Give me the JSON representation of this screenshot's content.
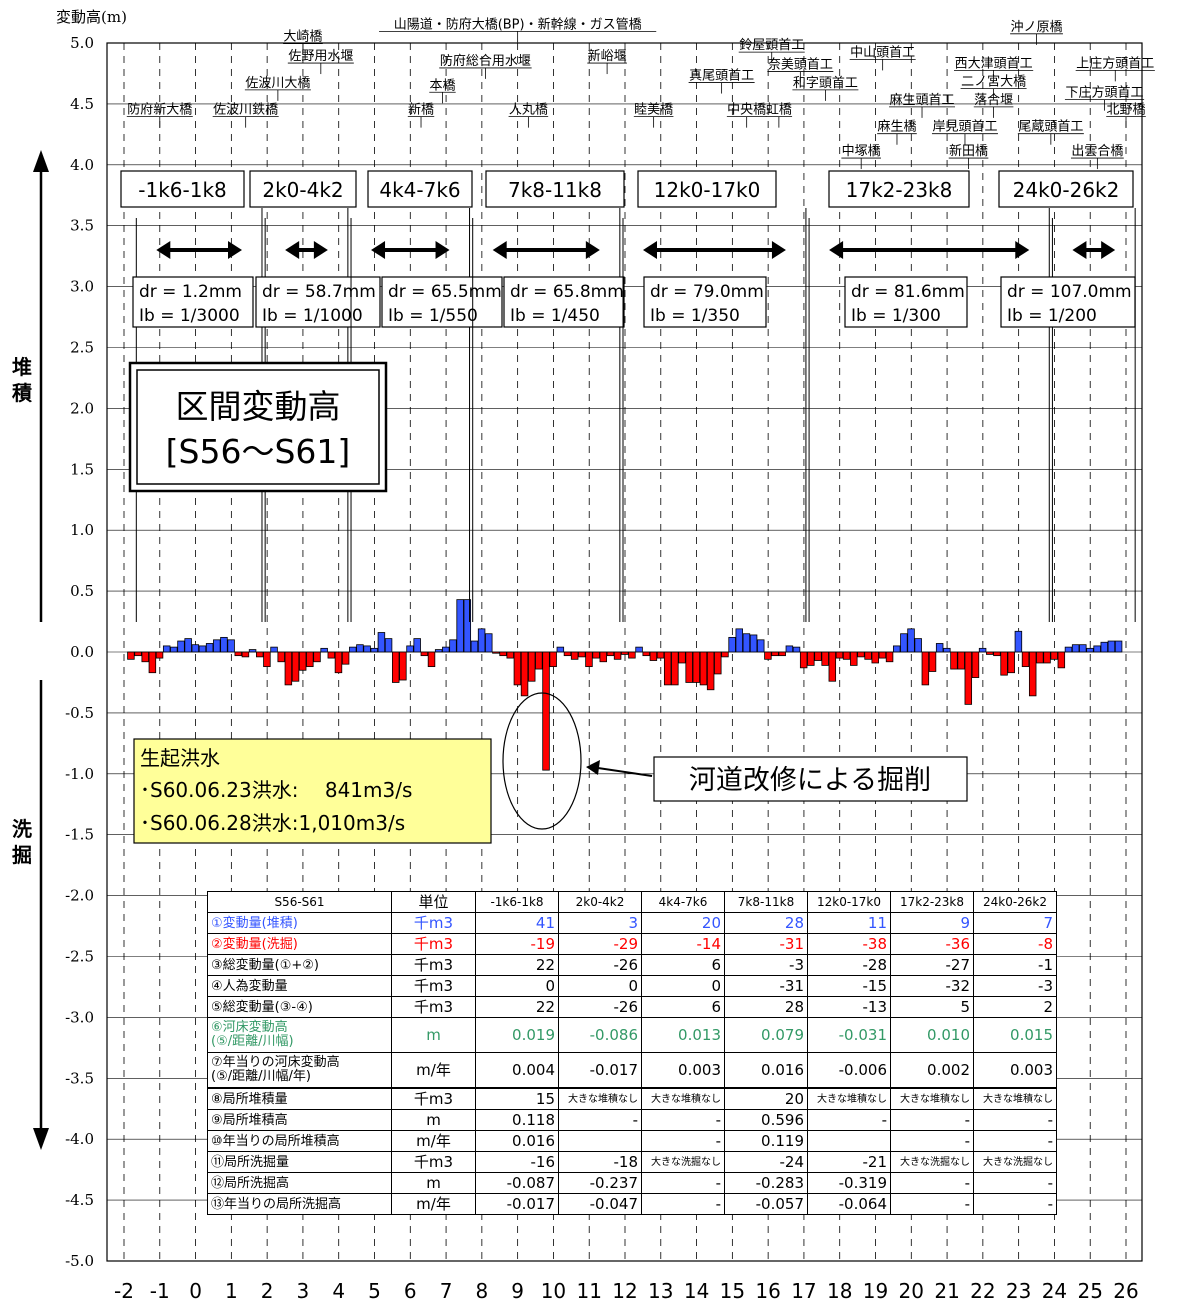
{
  "chart_data": {
    "type": "bar",
    "ylabel": "変動高(m)",
    "ylim": [
      -5.0,
      5.0
    ],
    "yticks": [
      "5.0",
      "4.5",
      "4.0",
      "3.5",
      "3.0",
      "2.5",
      "2.0",
      "1.5",
      "1.0",
      "0.5",
      "0.0",
      "-0.5",
      "-1.0",
      "-1.5",
      "-2.0",
      "-2.5",
      "-3.0",
      "-3.5",
      "-4.0",
      "-4.5",
      "-5.0"
    ],
    "xlim": [
      -2,
      26
    ],
    "xticks": [
      "-2",
      "-1",
      "0",
      "1",
      "2",
      "3",
      "4",
      "5",
      "6",
      "7",
      "8",
      "9",
      "10",
      "11",
      "12",
      "13",
      "14",
      "15",
      "16",
      "17",
      "18",
      "19",
      "20",
      "21",
      "22",
      "23",
      "24",
      "25",
      "26"
    ],
    "grid": "horizontal solid, vertical dashed",
    "title": "区間変動高",
    "subtitle": "[S56〜S61]",
    "side_labels": {
      "upper": "堆\n積",
      "lower": "洗\n掘"
    },
    "series_colors": {
      "deposition": "#3355ff",
      "scour": "#ff0000"
    },
    "bar_width_km": 0.2,
    "bars": [
      {
        "x": -1.8,
        "y": -0.06
      },
      {
        "x": -1.6,
        "y": -0.03
      },
      {
        "x": -1.4,
        "y": -0.08
      },
      {
        "x": -1.2,
        "y": -0.17
      },
      {
        "x": -1.0,
        "y": -0.05
      },
      {
        "x": -0.8,
        "y": 0.05
      },
      {
        "x": -0.6,
        "y": 0.04
      },
      {
        "x": -0.4,
        "y": 0.09
      },
      {
        "x": -0.2,
        "y": 0.11
      },
      {
        "x": 0.0,
        "y": 0.06
      },
      {
        "x": 0.2,
        "y": 0.05
      },
      {
        "x": 0.4,
        "y": 0.07
      },
      {
        "x": 0.6,
        "y": 0.1
      },
      {
        "x": 0.8,
        "y": 0.12
      },
      {
        "x": 1.0,
        "y": 0.1
      },
      {
        "x": 1.2,
        "y": -0.03
      },
      {
        "x": 1.4,
        "y": -0.04
      },
      {
        "x": 1.6,
        "y": 0.02
      },
      {
        "x": 1.8,
        "y": -0.04
      },
      {
        "x": 2.0,
        "y": -0.12
      },
      {
        "x": 2.2,
        "y": 0.04
      },
      {
        "x": 2.4,
        "y": -0.08
      },
      {
        "x": 2.6,
        "y": -0.27
      },
      {
        "x": 2.8,
        "y": -0.24
      },
      {
        "x": 3.0,
        "y": -0.15
      },
      {
        "x": 3.2,
        "y": -0.12
      },
      {
        "x": 3.4,
        "y": -0.08
      },
      {
        "x": 3.6,
        "y": 0.03
      },
      {
        "x": 3.8,
        "y": -0.05
      },
      {
        "x": 4.0,
        "y": -0.17
      },
      {
        "x": 4.2,
        "y": -0.1
      },
      {
        "x": 4.4,
        "y": 0.04
      },
      {
        "x": 4.6,
        "y": 0.06
      },
      {
        "x": 4.8,
        "y": 0.05
      },
      {
        "x": 5.0,
        "y": 0.03
      },
      {
        "x": 5.2,
        "y": 0.16
      },
      {
        "x": 5.4,
        "y": 0.11
      },
      {
        "x": 5.6,
        "y": -0.25
      },
      {
        "x": 5.8,
        "y": -0.23
      },
      {
        "x": 6.0,
        "y": 0.05
      },
      {
        "x": 6.2,
        "y": 0.11
      },
      {
        "x": 6.4,
        "y": -0.03
      },
      {
        "x": 6.6,
        "y": -0.12
      },
      {
        "x": 6.8,
        "y": 0.02
      },
      {
        "x": 7.0,
        "y": 0.04
      },
      {
        "x": 7.2,
        "y": 0.1
      },
      {
        "x": 7.4,
        "y": 0.43
      },
      {
        "x": 7.6,
        "y": 0.43
      },
      {
        "x": 7.8,
        "y": 0.09
      },
      {
        "x": 8.0,
        "y": 0.19
      },
      {
        "x": 8.2,
        "y": 0.15
      },
      {
        "x": 8.4,
        "y": -0.01
      },
      {
        "x": 8.6,
        "y": -0.03
      },
      {
        "x": 8.8,
        "y": -0.05
      },
      {
        "x": 9.0,
        "y": -0.27
      },
      {
        "x": 9.2,
        "y": -0.36
      },
      {
        "x": 9.4,
        "y": -0.24
      },
      {
        "x": 9.6,
        "y": -0.14
      },
      {
        "x": 9.8,
        "y": -0.97
      },
      {
        "x": 10.0,
        "y": -0.12
      },
      {
        "x": 10.2,
        "y": 0.04
      },
      {
        "x": 10.4,
        "y": -0.03
      },
      {
        "x": 10.6,
        "y": -0.06
      },
      {
        "x": 10.8,
        "y": -0.04
      },
      {
        "x": 11.0,
        "y": -0.12
      },
      {
        "x": 11.2,
        "y": -0.05
      },
      {
        "x": 11.4,
        "y": -0.08
      },
      {
        "x": 11.6,
        "y": -0.03
      },
      {
        "x": 11.8,
        "y": -0.06
      },
      {
        "x": 12.0,
        "y": -0.02
      },
      {
        "x": 12.2,
        "y": -0.05
      },
      {
        "x": 12.4,
        "y": 0.04
      },
      {
        "x": 12.6,
        "y": -0.03
      },
      {
        "x": 12.8,
        "y": -0.07
      },
      {
        "x": 13.0,
        "y": -0.05
      },
      {
        "x": 13.2,
        "y": -0.27
      },
      {
        "x": 13.4,
        "y": -0.27
      },
      {
        "x": 13.6,
        "y": -0.09
      },
      {
        "x": 13.8,
        "y": -0.25
      },
      {
        "x": 14.0,
        "y": -0.25
      },
      {
        "x": 14.2,
        "y": -0.27
      },
      {
        "x": 14.4,
        "y": -0.31
      },
      {
        "x": 14.6,
        "y": -0.18
      },
      {
        "x": 14.8,
        "y": -0.04
      },
      {
        "x": 15.0,
        "y": 0.12
      },
      {
        "x": 15.2,
        "y": 0.19
      },
      {
        "x": 15.4,
        "y": 0.15
      },
      {
        "x": 15.6,
        "y": 0.14
      },
      {
        "x": 15.8,
        "y": 0.1
      },
      {
        "x": 16.0,
        "y": -0.06
      },
      {
        "x": 16.2,
        "y": -0.03
      },
      {
        "x": 16.4,
        "y": -0.03
      },
      {
        "x": 16.6,
        "y": 0.05
      },
      {
        "x": 16.8,
        "y": 0.04
      },
      {
        "x": 17.0,
        "y": -0.13
      },
      {
        "x": 17.2,
        "y": -0.11
      },
      {
        "x": 17.4,
        "y": -0.07
      },
      {
        "x": 17.6,
        "y": -0.11
      },
      {
        "x": 17.8,
        "y": -0.24
      },
      {
        "x": 18.0,
        "y": -0.05
      },
      {
        "x": 18.2,
        "y": -0.06
      },
      {
        "x": 18.4,
        "y": -0.11
      },
      {
        "x": 18.6,
        "y": -0.04
      },
      {
        "x": 18.8,
        "y": -0.06
      },
      {
        "x": 19.0,
        "y": -0.09
      },
      {
        "x": 19.2,
        "y": -0.05
      },
      {
        "x": 19.4,
        "y": -0.08
      },
      {
        "x": 19.6,
        "y": 0.05
      },
      {
        "x": 19.8,
        "y": 0.15
      },
      {
        "x": 20.0,
        "y": 0.19
      },
      {
        "x": 20.2,
        "y": 0.11
      },
      {
        "x": 20.4,
        "y": -0.27
      },
      {
        "x": 20.6,
        "y": -0.16
      },
      {
        "x": 20.8,
        "y": 0.07
      },
      {
        "x": 21.0,
        "y": 0.03
      },
      {
        "x": 21.2,
        "y": -0.14
      },
      {
        "x": 21.4,
        "y": -0.14
      },
      {
        "x": 21.6,
        "y": -0.43
      },
      {
        "x": 21.8,
        "y": -0.21
      },
      {
        "x": 22.0,
        "y": 0.03
      },
      {
        "x": 22.2,
        "y": -0.02
      },
      {
        "x": 22.4,
        "y": -0.03
      },
      {
        "x": 22.6,
        "y": -0.19
      },
      {
        "x": 22.8,
        "y": -0.17
      },
      {
        "x": 23.0,
        "y": 0.17
      },
      {
        "x": 23.2,
        "y": -0.12
      },
      {
        "x": 23.4,
        "y": -0.36
      },
      {
        "x": 23.6,
        "y": -0.09
      },
      {
        "x": 23.8,
        "y": -0.09
      },
      {
        "x": 24.0,
        "y": -0.06
      },
      {
        "x": 24.2,
        "y": -0.13
      },
      {
        "x": 24.4,
        "y": 0.04
      },
      {
        "x": 24.6,
        "y": 0.06
      },
      {
        "x": 24.8,
        "y": 0.06
      },
      {
        "x": 25.0,
        "y": 0.03
      },
      {
        "x": 25.2,
        "y": 0.05
      },
      {
        "x": 25.4,
        "y": 0.08
      },
      {
        "x": 25.6,
        "y": 0.09
      },
      {
        "x": 25.8,
        "y": 0.09
      }
    ],
    "segments": [
      {
        "label": "-1k6-1k8",
        "dr": "dr =  1.2mm",
        "ib": "Ib = 1/3000",
        "from_km": -1.6,
        "to_km": 1.8
      },
      {
        "label": "2k0-4k2",
        "dr": "dr =  58.7mm",
        "ib": "Ib = 1/1000",
        "from_km": 2.0,
        "to_km": 4.2
      },
      {
        "label": "4k4-7k6",
        "dr": "dr = 65.5mm",
        "ib": "Ib = 1/550",
        "from_km": 4.4,
        "to_km": 7.6
      },
      {
        "label": "7k8-11k8",
        "dr": "dr = 65.8mm",
        "ib": "Ib = 1/450",
        "from_km": 7.8,
        "to_km": 11.8
      },
      {
        "label": "12k0-17k0",
        "dr": "dr = 79.0mm",
        "ib": "Ib = 1/350",
        "from_km": 12.0,
        "to_km": 17.0
      },
      {
        "label": "17k2-23k8",
        "dr": "dr = 81.6mm",
        "ib": "Ib = 1/300",
        "from_km": 17.2,
        "to_km": 23.8
      },
      {
        "label": "24k0-26k2",
        "dr": "dr = 107.0mm",
        "ib": "Ib = 1/200",
        "from_km": 24.0,
        "to_km": 26.2
      }
    ],
    "bridges": [
      {
        "name": "防府新大橋",
        "km": -1.0,
        "y": 4.42
      },
      {
        "name": "佐波川鉄橋",
        "km": 1.4,
        "y": 4.42
      },
      {
        "name": "佐波川大橋",
        "km": 2.3,
        "y": 4.64
      },
      {
        "name": "大崎橋",
        "km": 3.0,
        "y": 5.02
      },
      {
        "name": "佐野用水堰",
        "km": 3.5,
        "y": 4.86
      },
      {
        "name": "新橋",
        "km": 6.3,
        "y": 4.42
      },
      {
        "name": "本橋",
        "km": 6.9,
        "y": 4.62
      },
      {
        "name": "防府総合用水堰",
        "km": 8.1,
        "y": 4.82
      },
      {
        "name": "人丸橋",
        "km": 9.3,
        "y": 4.42
      },
      {
        "name": "山陽道・防府大橋(BP)・新幹線・ガス管橋",
        "km": 9.0,
        "y": 5.12
      },
      {
        "name": "新峪堰",
        "km": 11.5,
        "y": 4.86
      },
      {
        "name": "睦美橋",
        "km": 12.8,
        "y": 4.42
      },
      {
        "name": "真尾頭首工",
        "km": 14.7,
        "y": 4.7
      },
      {
        "name": "鈴屋頭首工",
        "km": 16.1,
        "y": 4.95
      },
      {
        "name": "奈美頭首工",
        "km": 16.9,
        "y": 4.79
      },
      {
        "name": "中央橋",
        "km": 15.4,
        "y": 4.42
      },
      {
        "name": "虹橋",
        "km": 16.3,
        "y": 4.42
      },
      {
        "name": "和字頭首工",
        "km": 17.6,
        "y": 4.64
      },
      {
        "name": "中山頭首工",
        "km": 19.2,
        "y": 4.89
      },
      {
        "name": "沖ノ原橋",
        "km": 23.5,
        "y": 5.1
      },
      {
        "name": "西大津頭首工",
        "km": 22.3,
        "y": 4.8
      },
      {
        "name": "上庄方頭首工",
        "km": 25.7,
        "y": 4.8
      },
      {
        "name": "二ノ宮大橋",
        "km": 22.3,
        "y": 4.65
      },
      {
        "name": "麻生頭首工",
        "km": 20.3,
        "y": 4.5
      },
      {
        "name": "落合堰",
        "km": 22.3,
        "y": 4.5
      },
      {
        "name": "下庄方頭首工",
        "km": 25.4,
        "y": 4.56
      },
      {
        "name": "北野橋",
        "km": 26.0,
        "y": 4.42
      },
      {
        "name": "麻生橋",
        "km": 19.6,
        "y": 4.28
      },
      {
        "name": "岸見頭首工",
        "km": 21.5,
        "y": 4.28
      },
      {
        "name": "尾蔵頭首工",
        "km": 23.9,
        "y": 4.28
      },
      {
        "name": "中塚橋",
        "km": 18.6,
        "y": 4.08
      },
      {
        "name": "新田橋",
        "km": 21.6,
        "y": 4.08
      },
      {
        "name": "出雲合橋",
        "km": 25.2,
        "y": 4.08
      }
    ],
    "flood_box": {
      "title": "生起洪水",
      "lines": [
        "･S60.06.23洪水:　 841m3/s",
        "･S60.06.28洪水:1,010m3/s"
      ]
    },
    "annotation": "河道改修による掘削",
    "table": {
      "corner": "S56-S61",
      "unit_header": "単位",
      "columns": [
        "-1k6-1k8",
        "2k0-4k2",
        "4k4-7k6",
        "7k8-11k8",
        "12k0-17k0",
        "17k2-23k8",
        "24k0-26k2"
      ],
      "rows": [
        {
          "label": "①変動量(堆積)",
          "unit": "千m3",
          "values": [
            "41",
            "3",
            "20",
            "28",
            "11",
            "9",
            "7"
          ],
          "color": "blue"
        },
        {
          "label": "②変動量(洗掘)",
          "unit": "千m3",
          "values": [
            "-19",
            "-29",
            "-14",
            "-31",
            "-38",
            "-36",
            "-8"
          ],
          "color": "red"
        },
        {
          "label": "③総変動量(①+②)",
          "unit": "千m3",
          "values": [
            "22",
            "-26",
            "6",
            "-3",
            "-28",
            "-27",
            "-1"
          ]
        },
        {
          "label": "④人為変動量",
          "unit": "千m3",
          "values": [
            "0",
            "0",
            "0",
            "-31",
            "-15",
            "-32",
            "-3"
          ]
        },
        {
          "label": "⑤総変動量(③-④)",
          "unit": "千m3",
          "values": [
            "22",
            "-26",
            "6",
            "28",
            "-13",
            "5",
            "2"
          ]
        },
        {
          "label": "⑥河床変動高\n(⑤/距離/川幅)",
          "unit": "m",
          "values": [
            "0.019",
            "-0.086",
            "0.013",
            "0.079",
            "-0.031",
            "0.010",
            "0.015"
          ],
          "color": "green",
          "tall": true
        },
        {
          "label": "⑦年当りの河床変動高\n(⑤/距離/川幅/年)",
          "unit": "m/年",
          "values": [
            "0.004",
            "-0.017",
            "0.003",
            "0.016",
            "-0.006",
            "0.002",
            "0.003"
          ],
          "tall": true,
          "bold": true
        },
        {
          "label": "⑧局所堆積量",
          "unit": "千m3",
          "values": [
            "15",
            "大きな堆積なし",
            "大きな堆積なし",
            "20",
            "大きな堆積なし",
            "大きな堆積なし",
            "大きな堆積なし"
          ]
        },
        {
          "label": "⑨局所堆積高",
          "unit": "m",
          "values": [
            "0.118",
            "-",
            "-",
            "0.596",
            "-",
            "-",
            "-"
          ]
        },
        {
          "label": "⑩年当りの局所堆積高",
          "unit": "m/年",
          "values": [
            "0.016",
            "",
            "-",
            "0.119",
            "",
            "-",
            "-"
          ]
        },
        {
          "label": "⑪局所洗掘量",
          "unit": "千m3",
          "values": [
            "-16",
            "-18",
            "大きな洗掘なし",
            "-24",
            "-21",
            "大きな洗掘なし",
            "大きな洗掘なし"
          ]
        },
        {
          "label": "⑫局所洗掘高",
          "unit": "m",
          "values": [
            "-0.087",
            "-0.237",
            "-",
            "-0.283",
            "-0.319",
            "-",
            "-"
          ]
        },
        {
          "label": "⑬年当りの局所洗掘高",
          "unit": "m/年",
          "values": [
            "-0.017",
            "-0.047",
            "-",
            "-0.057",
            "-0.064",
            "-",
            "-"
          ]
        }
      ]
    }
  }
}
